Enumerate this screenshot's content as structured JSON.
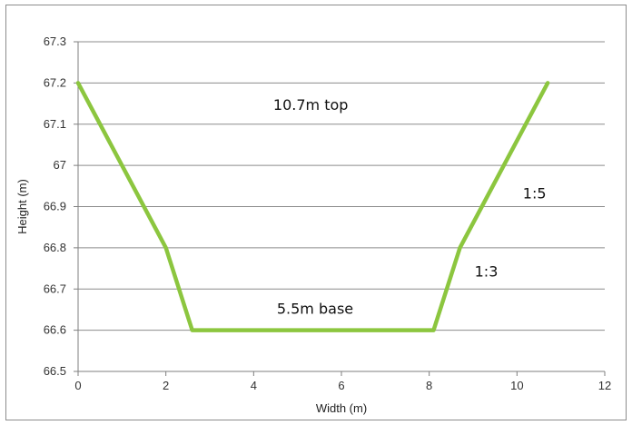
{
  "chart_data": {
    "type": "line",
    "title": "",
    "xlabel": "Width (m)",
    "ylabel": "Height (m)",
    "xlim": [
      0,
      12
    ],
    "ylim": [
      66.5,
      67.3
    ],
    "xticks": [
      0,
      2,
      4,
      6,
      8,
      10,
      12
    ],
    "yticks": [
      66.5,
      66.6,
      66.7,
      66.8,
      66.9,
      67.0,
      67.1,
      67.2,
      67.3
    ],
    "x_tick_labels": [
      "0",
      "2",
      "4",
      "6",
      "8",
      "10",
      "12"
    ],
    "y_tick_labels": [
      "66.5",
      "66.6",
      "66.7",
      "66.8",
      "66.9",
      "67",
      "67.1",
      "67.2",
      "67.3"
    ],
    "grid": "horizontal",
    "legend": "none",
    "series": [
      {
        "color": "#8cc63f",
        "points": [
          {
            "x": 0,
            "y": 67.2
          },
          {
            "x": 2,
            "y": 66.8
          },
          {
            "x": 2.6,
            "y": 66.6
          },
          {
            "x": 8.1,
            "y": 66.6
          },
          {
            "x": 8.7,
            "y": 66.8
          },
          {
            "x": 10.7,
            "y": 67.2
          }
        ]
      }
    ],
    "annotations": [
      {
        "text": "10.7m top",
        "x": 5.3,
        "y": 67.135
      },
      {
        "text": "5.5m base",
        "x": 5.4,
        "y": 66.64
      },
      {
        "text": "1:5",
        "x": 10.4,
        "y": 66.92
      },
      {
        "text": "1:3",
        "x": 9.3,
        "y": 66.73
      }
    ],
    "colors": {
      "gridline": "#8c8c8c",
      "axis": "#7f7f7f",
      "line": "#8cc63f"
    }
  }
}
